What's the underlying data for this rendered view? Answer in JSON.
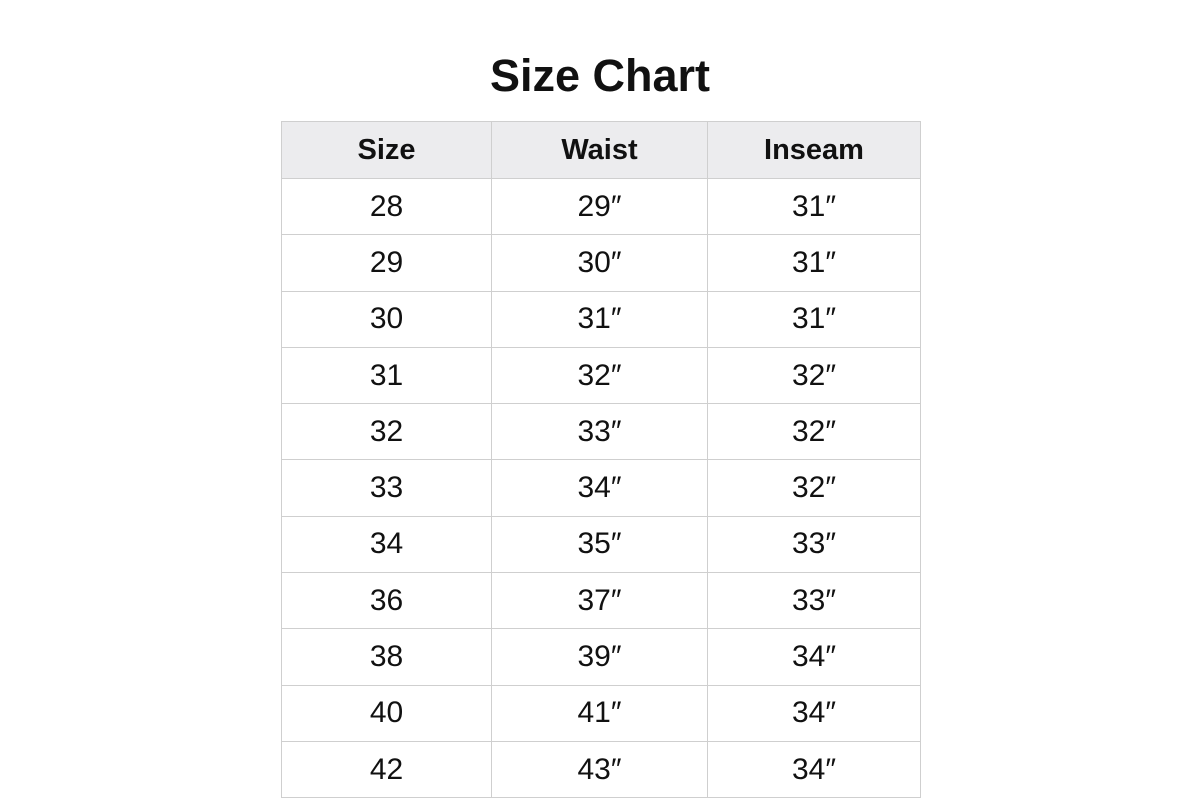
{
  "title": "Size Chart",
  "table": {
    "headers": [
      "Size",
      "Waist",
      "Inseam"
    ],
    "rows": [
      [
        "28",
        "29″",
        "31″"
      ],
      [
        "29",
        "30″",
        "31″"
      ],
      [
        "30",
        "31″",
        "31″"
      ],
      [
        "31",
        "32″",
        "32″"
      ],
      [
        "32",
        "33″",
        "32″"
      ],
      [
        "33",
        "34″",
        "32″"
      ],
      [
        "34",
        "35″",
        "33″"
      ],
      [
        "36",
        "37″",
        "33″"
      ],
      [
        "38",
        "39″",
        "34″"
      ],
      [
        "40",
        "41″",
        "34″"
      ],
      [
        "42",
        "43″",
        "34″"
      ]
    ]
  },
  "colors": {
    "header_bg": "#ececee",
    "border": "#cfcfcf"
  }
}
